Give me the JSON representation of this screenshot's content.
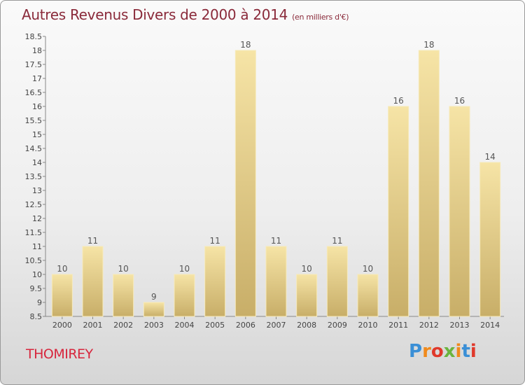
{
  "chart_data": {
    "type": "bar",
    "title": "Autres Revenus Divers de 2000 à 2014",
    "subtitle": "(en milliers d'€)",
    "categories": [
      "2000",
      "2001",
      "2002",
      "2003",
      "2004",
      "2005",
      "2006",
      "2007",
      "2008",
      "2009",
      "2010",
      "2011",
      "2012",
      "2013",
      "2014"
    ],
    "values": [
      10,
      11,
      10,
      9,
      10,
      11,
      18,
      11,
      10,
      11,
      10,
      16,
      18,
      16,
      14
    ],
    "ylim": [
      8.5,
      18.5
    ],
    "yticks": [
      "8.5",
      "9",
      "9.5",
      "10",
      "10.5",
      "11",
      "11.5",
      "12",
      "12.5",
      "13",
      "13.5",
      "14",
      "14.5",
      "15",
      "15.5",
      "16",
      "16.5",
      "17",
      "17.5",
      "18",
      "18.5"
    ],
    "xlabel": "",
    "ylabel": "",
    "grid": false,
    "bar_color_top": "#f6e4a6",
    "bar_color_bottom": "#c8ae68"
  },
  "place_name": "THOMIREY",
  "logo": {
    "letters": [
      "P",
      "r",
      "o",
      "x",
      "i",
      "t",
      "i"
    ],
    "colors": [
      "#3a8fd6",
      "#f08a1c",
      "#e0392b",
      "#6ab43e",
      "#f08a1c",
      "#3a8fd6",
      "#e0392b"
    ]
  }
}
